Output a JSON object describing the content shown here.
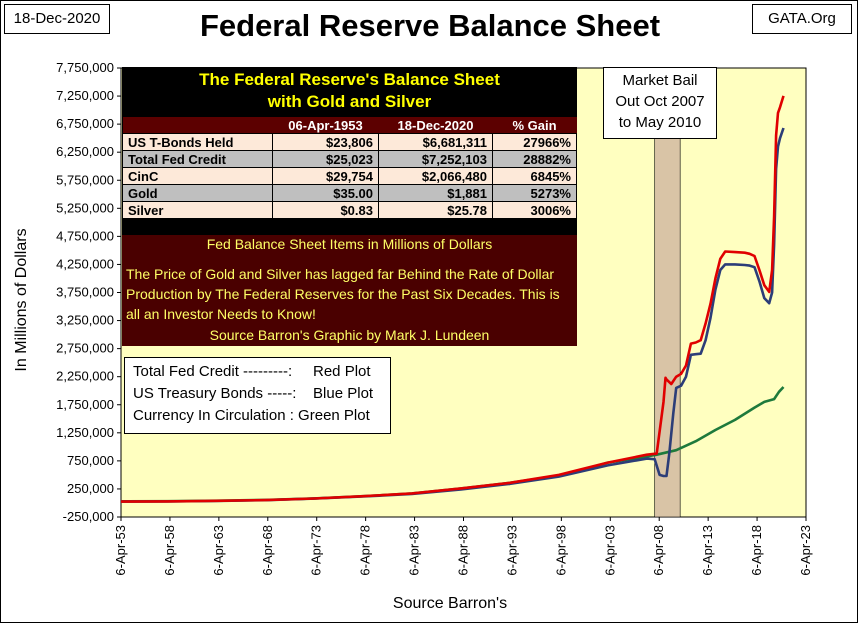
{
  "header": {
    "date": "18-Dec-2020",
    "title": "Federal Reserve Balance Sheet",
    "source": "GATA.Org"
  },
  "info_panel": {
    "title_line1": "The Federal Reserve's Balance Sheet",
    "title_line2": "with Gold and Silver",
    "columns": [
      "",
      "06-Apr-1953",
      "18-Dec-2020",
      "% Gain"
    ],
    "rows": [
      [
        "US T-Bonds Held",
        "$23,806",
        "$6,681,311",
        "27966%"
      ],
      [
        "Total Fed Credit",
        "$25,023",
        "$7,252,103",
        "28882%"
      ],
      [
        "CinC",
        "$29,754",
        "$2,066,480",
        "6845%"
      ],
      [
        "Gold",
        "$35.00",
        "$1,881",
        "5273%"
      ],
      [
        "Silver",
        "$0.83",
        "$25.78",
        "3006%"
      ]
    ],
    "subtitle": "Fed Balance Sheet Items in Millions of Dollars",
    "description": "The Price of Gold and Silver has lagged far Behind the Rate of Dollar Production by The Federal Reserves for the Past Six Decades.  This is all an Investor Needs to Know!",
    "credit": "Source Barron's   Graphic by Mark J. Lundeen"
  },
  "bailout_note": {
    "line1": "Market Bail",
    "line2": "Out Oct 2007",
    "line3": "to May 2010"
  },
  "legend": {
    "line1": "Total Fed Credit ---------:     Red Plot",
    "line2": "US Treasury Bonds -----:    Blue Plot",
    "line3": "Currency In Circulation : Green Plot"
  },
  "colors": {
    "plot_background": "#ffffc0",
    "total_fed_credit": "#e00000",
    "us_treasury_bonds": "#2c3d78",
    "currency_in_circulation": "#1e7a3c",
    "bailout_shade": "#d9c4a6"
  },
  "chart_data": {
    "type": "line",
    "title": "",
    "xlabel": "Source Barron's",
    "ylabel": "In Millions of Dollars",
    "xlim": [
      1953.26,
      2023.26
    ],
    "ylim": [
      -250000,
      7750000
    ],
    "x_ticks": [
      "6-Apr-53",
      "6-Apr-58",
      "6-Apr-63",
      "6-Apr-68",
      "6-Apr-73",
      "6-Apr-78",
      "6-Apr-83",
      "6-Apr-88",
      "6-Apr-93",
      "6-Apr-98",
      "6-Apr-03",
      "6-Apr-08",
      "6-Apr-13",
      "6-Apr-18",
      "6-Apr-23"
    ],
    "y_ticks": [
      "7,750,000",
      "7,250,000",
      "6,750,000",
      "6,250,000",
      "5,750,000",
      "5,250,000",
      "4,750,000",
      "4,250,000",
      "3,750,000",
      "3,250,000",
      "2,750,000",
      "2,250,000",
      "1,750,000",
      "1,250,000",
      "750,000",
      "250,000",
      "-250,000"
    ],
    "shaded_region": {
      "label": "Market Bail Out Oct 2007 to May 2010",
      "x": [
        2007.8,
        2010.4
      ]
    },
    "grid": false,
    "series": [
      {
        "name": "Total Fed Credit",
        "color": "#e00000",
        "x": [
          1953.26,
          1958,
          1963,
          1968,
          1973,
          1978,
          1983,
          1988,
          1993,
          1998,
          2003,
          2007.0,
          2008.0,
          2008.7,
          2008.9,
          2009.0,
          2009.5,
          2010.0,
          2010.5,
          2011.0,
          2011.5,
          2012.0,
          2012.5,
          2013.0,
          2013.5,
          2014.0,
          2014.5,
          2015.0,
          2016.0,
          2017.0,
          2017.5,
          2018.0,
          2018.5,
          2019.0,
          2019.5,
          2019.8,
          2020.0,
          2020.2,
          2020.4,
          2020.6,
          2020.96
        ],
        "y": [
          25023,
          28000,
          38000,
          52000,
          80000,
          120000,
          170000,
          260000,
          360000,
          500000,
          720000,
          860000,
          880000,
          1800000,
          2230000,
          2200000,
          2120000,
          2250000,
          2300000,
          2450000,
          2840000,
          2860000,
          2900000,
          3200000,
          3550000,
          4000000,
          4350000,
          4480000,
          4470000,
          4460000,
          4440000,
          4400000,
          4150000,
          3880000,
          3760000,
          4150000,
          5100000,
          6550000,
          6950000,
          7050000,
          7252103
        ]
      },
      {
        "name": "US Treasury Bonds",
        "color": "#2c3d78",
        "x": [
          1953.26,
          1958,
          1963,
          1968,
          1973,
          1978,
          1983,
          1988,
          1993,
          1998,
          2003,
          2007.0,
          2007.8,
          2008.3,
          2008.7,
          2009.0,
          2009.3,
          2009.7,
          2010.0,
          2010.5,
          2011.0,
          2011.5,
          2012.0,
          2012.5,
          2013.0,
          2013.5,
          2014.0,
          2014.5,
          2015.0,
          2016.0,
          2017.0,
          2017.5,
          2018.0,
          2018.5,
          2019.0,
          2019.5,
          2019.8,
          2020.0,
          2020.2,
          2020.4,
          2020.6,
          2020.96
        ],
        "y": [
          23806,
          26000,
          35000,
          50000,
          78000,
          115000,
          160000,
          240000,
          340000,
          470000,
          670000,
          790000,
          780000,
          500000,
          480000,
          480000,
          900000,
          1600000,
          2050000,
          2090000,
          2250000,
          2640000,
          2650000,
          2660000,
          2900000,
          3300000,
          3800000,
          4150000,
          4250000,
          4250000,
          4240000,
          4230000,
          4200000,
          3950000,
          3650000,
          3560000,
          3750000,
          4600000,
          5950000,
          6350000,
          6500000,
          6681311
        ]
      },
      {
        "name": "Currency In Circulation",
        "color": "#1e7a3c",
        "x": [
          1953.26,
          1958,
          1963,
          1968,
          1973,
          1978,
          1983,
          1988,
          1993,
          1998,
          2001,
          2003,
          2006,
          2008,
          2010,
          2012,
          2014,
          2016,
          2018,
          2019,
          2020.0,
          2020.5,
          2020.96
        ],
        "y": [
          29754,
          32000,
          40000,
          55000,
          82000,
          120000,
          170000,
          260000,
          360000,
          490000,
          620000,
          720000,
          800000,
          860000,
          940000,
          1100000,
          1300000,
          1480000,
          1700000,
          1800000,
          1850000,
          1980000,
          2066480
        ]
      }
    ]
  }
}
